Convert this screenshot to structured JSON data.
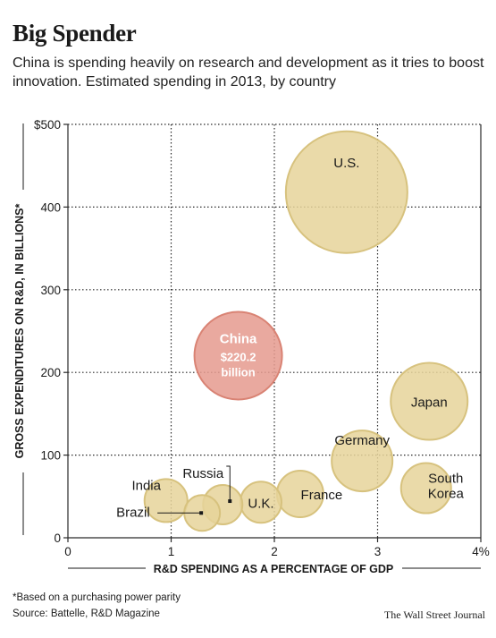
{
  "header": {
    "title": "Big Spender",
    "subtitle": "China is spending heavily on research and development as it tries to boost innovation. Estimated spending in 2013, by country"
  },
  "footer": {
    "footnote": "*Based on a purchasing power parity",
    "source": "Source: Battelle, R&D Magazine",
    "credit": "The Wall Street Journal"
  },
  "colors": {
    "bubble_fill": "#e6d49a",
    "bubble_stroke": "#d7c27e",
    "highlight_fill": "#e59a8e",
    "highlight_stroke": "#d98374",
    "grid": "#2a2a2a"
  },
  "chart_data": {
    "type": "scatter",
    "xlabel": "R&D SPENDING AS A PERCENTAGE OF GDP",
    "ylabel": "GROSS EXPENDITURES ON R&D, IN BILLIONS*",
    "xlim": [
      0,
      4
    ],
    "ylim": [
      0,
      500
    ],
    "x_ticks": [
      "0",
      "1",
      "2",
      "3",
      "4%"
    ],
    "y_ticks": [
      "0",
      "100",
      "200",
      "300",
      "400",
      "$500"
    ],
    "grid": true,
    "points": [
      {
        "label": "U.S.",
        "x": 2.7,
        "y": 418,
        "r": 68
      },
      {
        "label": "China",
        "x": 1.65,
        "y": 220.2,
        "r": 49,
        "highlight": true,
        "value_label": "$220.2",
        "unit_label": "billion"
      },
      {
        "label": "Japan",
        "x": 3.5,
        "y": 165,
        "r": 43
      },
      {
        "label": "Germany",
        "x": 2.85,
        "y": 93,
        "r": 34
      },
      {
        "label": "South Korea",
        "x": 3.47,
        "y": 60,
        "r": 28
      },
      {
        "label": "France",
        "x": 2.25,
        "y": 53,
        "r": 26
      },
      {
        "label": "U.K.",
        "x": 1.87,
        "y": 43,
        "r": 23
      },
      {
        "label": "Russia",
        "x": 1.5,
        "y": 40,
        "r": 22
      },
      {
        "label": "India",
        "x": 0.95,
        "y": 45,
        "r": 24
      },
      {
        "label": "Brazil",
        "x": 1.3,
        "y": 30,
        "r": 20
      }
    ]
  }
}
